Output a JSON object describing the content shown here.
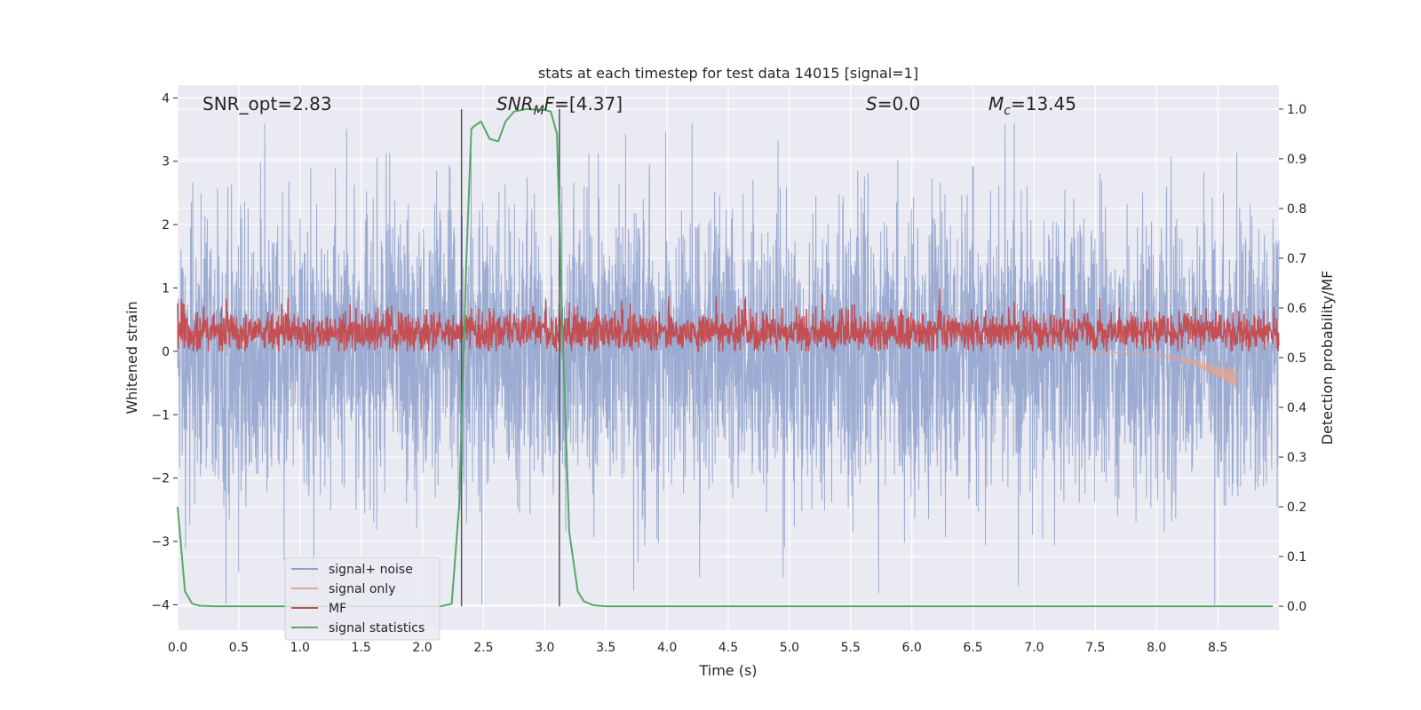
{
  "chart_data": {
    "type": "line",
    "title": "stats at each timestep for test data 14015 [signal=1]",
    "xlabel": "Time (s)",
    "ylabel_left": "Whitened strain",
    "ylabel_right": "Detection probability/MF",
    "xlim": [
      0.0,
      9.0
    ],
    "ylim_left": [
      -4.4,
      4.2
    ],
    "ylim_right": [
      -0.048,
      1.048
    ],
    "x_ticks": [
      "0.0",
      "0.5",
      "1.0",
      "1.5",
      "2.0",
      "2.5",
      "3.0",
      "3.5",
      "4.0",
      "4.5",
      "5.0",
      "5.5",
      "6.0",
      "6.5",
      "7.0",
      "7.5",
      "8.0",
      "8.5"
    ],
    "y_ticks_left": [
      "4",
      "3",
      "2",
      "1",
      "0",
      "−1",
      "−2",
      "−3",
      "−4"
    ],
    "y_ticks_right": [
      "1.0",
      "0.9",
      "0.8",
      "0.7",
      "0.6",
      "0.5",
      "0.4",
      "0.3",
      "0.2",
      "0.1",
      "0.0"
    ],
    "grid": true,
    "background": "#eaeaf2",
    "annotations": {
      "snr_opt": "SNR_opt=2.83",
      "snr_mf": "=[4.37]",
      "snr_mf_prefix": "SNR",
      "snr_mf_sub": "M",
      "snr_mf_after": "F",
      "s_label": "S",
      "s_value": "=0.0",
      "mc_label": "M",
      "mc_sub": "c",
      "mc_value": "=13.45"
    },
    "vertical_lines_x": [
      2.32,
      3.12
    ],
    "series": [
      {
        "name": "signal+ noise",
        "color": "#8da0cb",
        "axis": "left",
        "kind": "noise",
        "range": [
          -4.0,
          3.6
        ]
      },
      {
        "name": "signal only",
        "color": "#e5a58f",
        "axis": "left",
        "kind": "chirp",
        "x_end": 8.65,
        "min": -0.55
      },
      {
        "name": "MF",
        "color": "#c44e52",
        "axis": "left",
        "kind": "mf",
        "range": [
          0.0,
          1.0
        ]
      },
      {
        "name": "signal statistics",
        "color": "#55a868",
        "axis": "right",
        "x": [
          0.0,
          0.06,
          0.12,
          0.18,
          0.3,
          0.5,
          1.0,
          1.5,
          2.0,
          2.15,
          2.24,
          2.3,
          2.36,
          2.4,
          2.42,
          2.48,
          2.55,
          2.62,
          2.68,
          2.75,
          2.85,
          3.0,
          3.05,
          3.1,
          3.14,
          3.2,
          3.27,
          3.32,
          3.4,
          3.5,
          4.0,
          5.0,
          6.0,
          7.0,
          8.0,
          8.95
        ],
        "y": [
          0.2,
          0.03,
          0.005,
          0.001,
          0.0,
          0.0,
          0.0,
          0.0,
          0.0,
          0.0,
          0.005,
          0.2,
          0.7,
          0.96,
          0.965,
          0.975,
          0.94,
          0.935,
          0.975,
          0.995,
          1.0,
          0.998,
          0.995,
          0.95,
          0.6,
          0.15,
          0.03,
          0.01,
          0.002,
          0.0,
          0.0,
          0.0,
          0.0,
          0.0,
          0.0,
          0.0
        ]
      }
    ],
    "legend": {
      "placement": "lower-left",
      "entries": [
        "signal+ noise",
        "signal only",
        "MF",
        "signal statistics"
      ]
    }
  }
}
